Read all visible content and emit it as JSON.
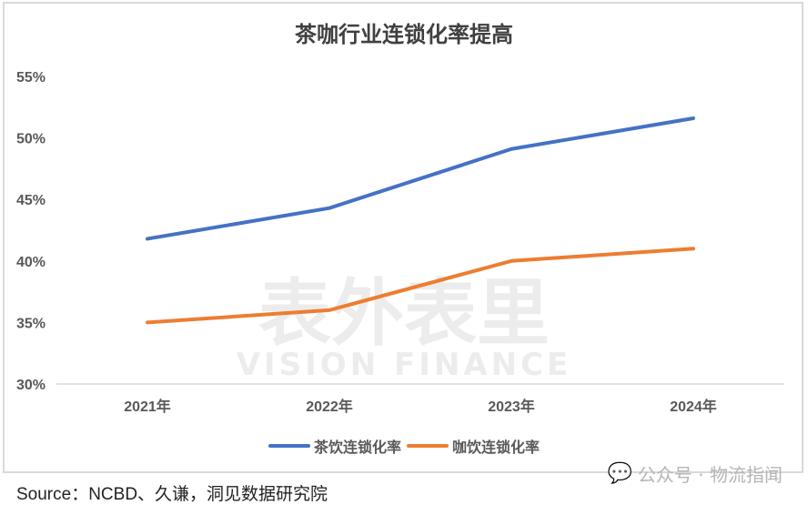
{
  "chart_data": {
    "type": "line",
    "title": "茶咖行业连锁化率提高",
    "categories": [
      "2021年",
      "2022年",
      "2023年",
      "2024年"
    ],
    "y_ticks": [
      "30%",
      "35%",
      "40%",
      "45%",
      "50%",
      "55%"
    ],
    "ylim": [
      30,
      55
    ],
    "y_unit": "%",
    "grid": false,
    "legend_position": "bottom",
    "series": [
      {
        "name": "茶饮连锁化率",
        "color": "#4472c4",
        "values": [
          41.8,
          44.3,
          49.1,
          51.6
        ]
      },
      {
        "name": "咖饮连锁化率",
        "color": "#ed7d31",
        "values": [
          35.0,
          36.0,
          40.0,
          41.0
        ]
      }
    ]
  },
  "watermark": {
    "cn": "表外表里",
    "en": "VISION FINANCE"
  },
  "source": "Source：NCBD、久谦，洞见数据研究院",
  "wechat": {
    "icon": "wechat-icon",
    "text": "公众号 · 物流指闻"
  }
}
